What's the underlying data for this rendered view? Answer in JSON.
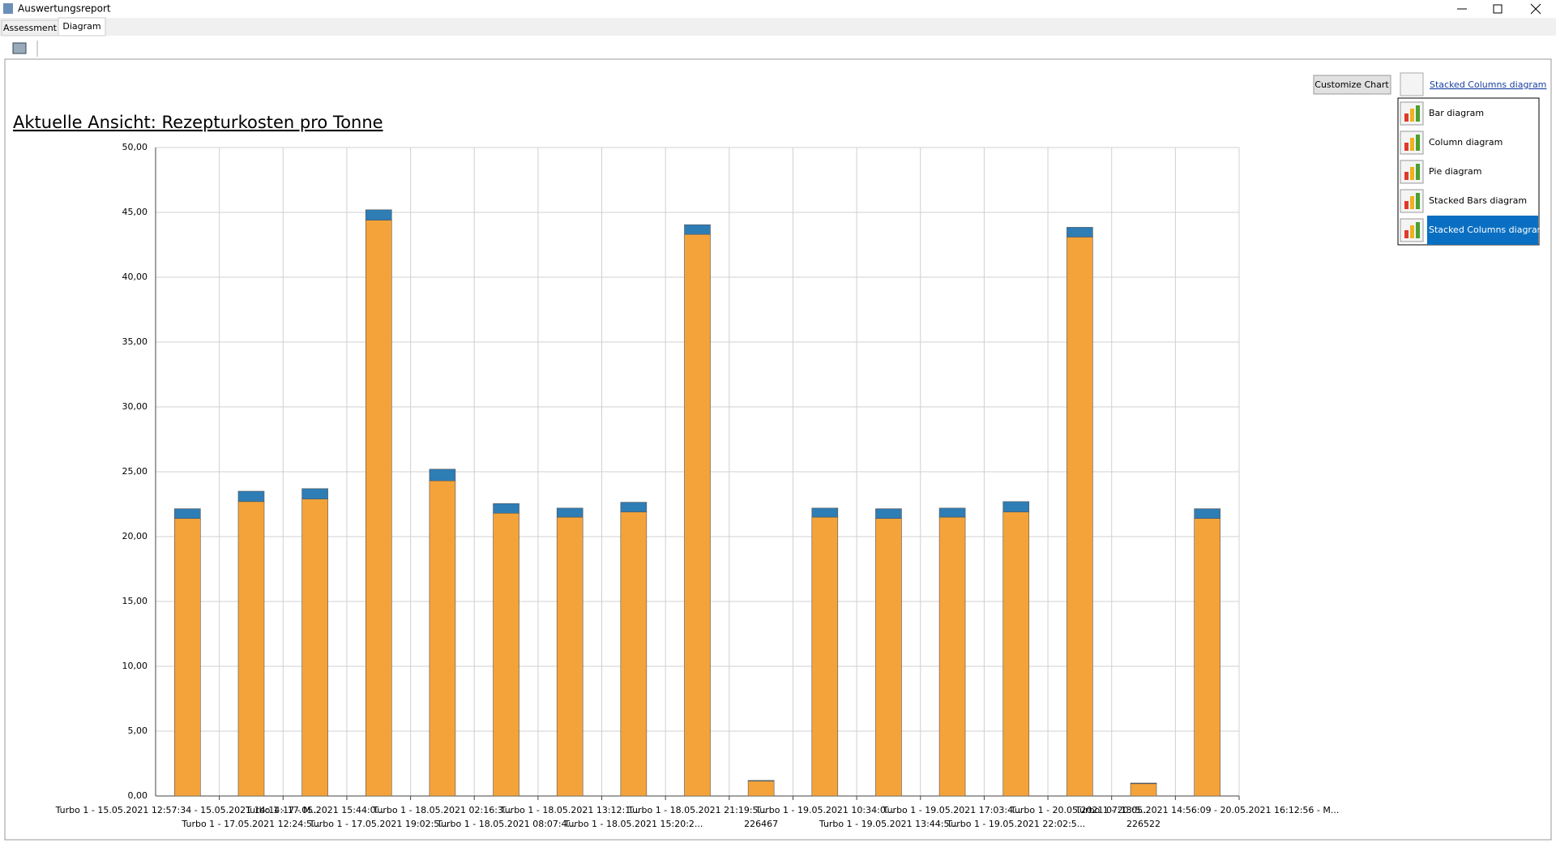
{
  "window": {
    "title": "Auswertungsreport"
  },
  "tabs": [
    "Assessment",
    "Diagram"
  ],
  "toolbar": {
    "customize_button": "Customize Chart",
    "chart_type_selected": "Stacked Columns diagram",
    "chart_type_options": [
      "Bar diagram",
      "Column diagram",
      "Pie diagram",
      "Stacked Bars diagram",
      "Stacked Columns diagram"
    ]
  },
  "chart_data": {
    "type": "stacked_bar",
    "title": "Aktuelle Ansicht: Rezepturkosten pro Tonne",
    "categories": [
      "Turbo 1 - 15.05.2021 12:57:34 - 15.05.2021 14:14:17 - M...",
      "Turbo 1 - 17.05.2021 12:24:5...",
      "Turbo 1 - 17.05.2021 15:44:0...",
      "Turbo 1 - 17.05.2021 19:02:5...",
      "Turbo 1 - 18.05.2021 02:16:3...",
      "Turbo 1 - 18.05.2021 08:07:4...",
      "Turbo 1 - 18.05.2021 13:12:1...",
      "Turbo 1 - 18.05.2021 15:20:2...",
      "Turbo 1 - 18.05.2021 21:19:5...",
      "226467",
      "Turbo 1 - 19.05.2021 10:34:0...",
      "Turbo 1 - 19.05.2021 13:44:5...",
      "Turbo 1 - 19.05.2021 17:03:4...",
      "Turbo 1 - 19.05.2021 22:02:5...",
      "Turbo 1 - 20.05.2021 07:13:5...",
      "226522",
      "Turbo 1 - 20.05.2021 14:56:09 - 20.05.2021 16:12:56 - M..."
    ],
    "series": [
      {
        "color": "#f4a33a",
        "values": [
          21.4,
          22.7,
          22.9,
          44.4,
          24.3,
          21.8,
          21.5,
          21.9,
          43.3,
          1.15,
          21.5,
          21.4,
          21.5,
          21.9,
          43.1,
          0.95,
          21.4
        ]
      },
      {
        "color": "#2e7db5",
        "values": [
          0.75,
          0.8,
          0.8,
          0.8,
          0.9,
          0.75,
          0.7,
          0.75,
          0.75,
          0.05,
          0.7,
          0.75,
          0.7,
          0.8,
          0.75,
          0.05,
          0.75
        ]
      }
    ],
    "ylim": [
      0,
      50
    ],
    "yticks": [
      {
        "value": 0,
        "label": "0,00"
      },
      {
        "value": 5,
        "label": "5,00"
      },
      {
        "value": 10,
        "label": "10,00"
      },
      {
        "value": 15,
        "label": "15,00"
      },
      {
        "value": 20,
        "label": "20,00"
      },
      {
        "value": 25,
        "label": "25,00"
      },
      {
        "value": 30,
        "label": "30,00"
      },
      {
        "value": 35,
        "label": "35,00"
      },
      {
        "value": 40,
        "label": "40,00"
      },
      {
        "value": 45,
        "label": "45,00"
      },
      {
        "value": 50,
        "label": "50,00"
      }
    ],
    "grid": true
  }
}
